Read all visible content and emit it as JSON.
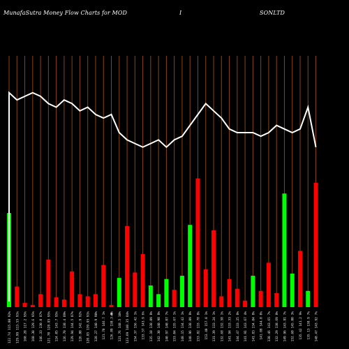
{
  "header": {
    "title_part1": "MunafaSutra  Money Flow  Charts for MOD",
    "title_part2": "I",
    "title_part3": "SONLTD"
  },
  "currency_symbol": "₹",
  "colors": {
    "background": "#000000",
    "grid": "#8B4513",
    "inflow": "#00FF00",
    "outflow": "#FF0000",
    "price_line": "#FFFFFF"
  },
  "chart_data": {
    "type": "bar",
    "title": "MunafaSutra Money Flow Charts for MODISONLTD",
    "grid": true,
    "ylim": [
      0,
      100
    ],
    "categories": [
      "122.74 115.80 92%",
      "129.99 113.55 91%",
      "160.20 117.2 95%",
      "160.30 129.6 95%",
      "146.33 130.0 87%",
      "121.70 128.85 95%",
      "124.05 143.7 95%",
      "126.70 138.4 89%",
      "129.94 144.5 87%",
      "126.80 142.9 92%",
      "120.85 139.95 91%",
      "128.27 140.9 90%",
      "121.70 146.7 1%",
      "126.89 150.3 8%",
      "121.76 148.5 10%",
      "123.69 140.35 84%",
      "154.37 156.42 1%",
      "133.57 143.9 6%",
      "135.10 138.09 8%",
      "142.30 140.98 8%",
      "140.97 140.07 7%",
      "153.04 135.67 1%",
      "148.15 134.42 1%",
      "148.96 138.09 8%",
      "153.82 133.78 8%",
      "153.40 157.0 1%",
      "131.39 133.24 1%",
      "132.68 132.58 1%",
      "141.94 133.33 2%",
      "144.47 133.25 8%",
      "141.91 143.67 4%",
      "141.83 134.04 8%",
      "141.08 144.0 0%",
      "138.46 143.65 7%",
      "132.29 138.69 8%",
      "149.96 143.81 7%",
      "152.60 145.00 3%",
      "135.42 141.2 9%",
      "135.13 138.9 7%",
      "148.47 143.92 7%"
    ],
    "series": [
      {
        "values": [
          43.5,
          9.5,
          2.0,
          1.0,
          6.0,
          22.0,
          4.5,
          3.5,
          16.5,
          6.0,
          5.0,
          6.0,
          19.5,
          1.0,
          13.5,
          37.5,
          16.0,
          24.5,
          10.0,
          6.0,
          13.0,
          8.0,
          14.5,
          38.0,
          59.5,
          17.5,
          35.5,
          5.0,
          13.0,
          8.5,
          3.0,
          14.5,
          7.5,
          20.5,
          6.5,
          52.5,
          15.5,
          26.0,
          7.5,
          57.5
        ]
      },
      {
        "values": [
          91,
          89,
          90,
          91,
          90,
          88,
          87,
          89,
          88,
          86,
          87,
          85,
          84,
          85,
          80,
          78,
          77,
          76,
          77,
          78,
          76,
          78,
          79,
          82,
          85,
          88,
          86,
          84,
          81,
          80,
          80,
          80,
          79,
          80,
          82,
          81,
          80,
          81,
          87,
          76
        ]
      }
    ]
  }
}
